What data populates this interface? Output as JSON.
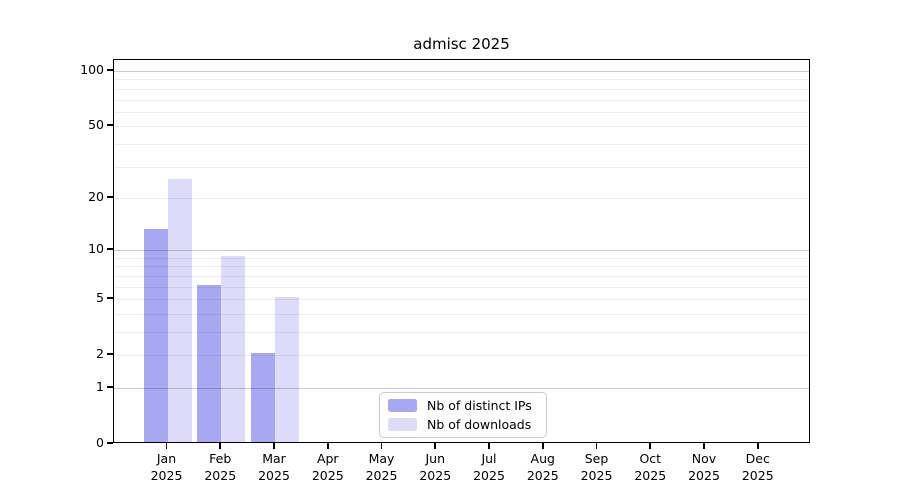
{
  "chart_data": {
    "type": "bar",
    "title": "admisc 2025",
    "categories": [
      "Jan",
      "Feb",
      "Mar",
      "Apr",
      "May",
      "Jun",
      "Jul",
      "Aug",
      "Sep",
      "Oct",
      "Nov",
      "Dec"
    ],
    "year_label": "2025",
    "series": [
      {
        "name": "Nb of distinct IPs",
        "color": "#a8a8f2",
        "values": [
          13,
          6,
          2,
          0,
          0,
          0,
          0,
          0,
          0,
          0,
          0,
          0
        ]
      },
      {
        "name": "Nb of downloads",
        "color": "#dcdcf8",
        "values": [
          25,
          9,
          5,
          0,
          0,
          0,
          0,
          0,
          0,
          0,
          0,
          0
        ]
      }
    ],
    "y_ticks": [
      0,
      1,
      2,
      5,
      10,
      20,
      50,
      100
    ],
    "y_major_gridlines": [
      1,
      10,
      100
    ],
    "y_minor_gridlines": [
      2,
      3,
      4,
      5,
      6,
      7,
      8,
      9,
      20,
      30,
      40,
      50,
      60,
      70,
      80,
      90
    ],
    "y_scale": "log1p",
    "ylim": [
      0,
      115
    ],
    "xlabel": "",
    "ylabel": "",
    "grid": true,
    "legend_position": "bottom-center",
    "colors": {
      "axis": "#000000",
      "major_grid": "#cbcbcb",
      "minor_grid": "#ececec",
      "background": "#ffffff"
    }
  }
}
